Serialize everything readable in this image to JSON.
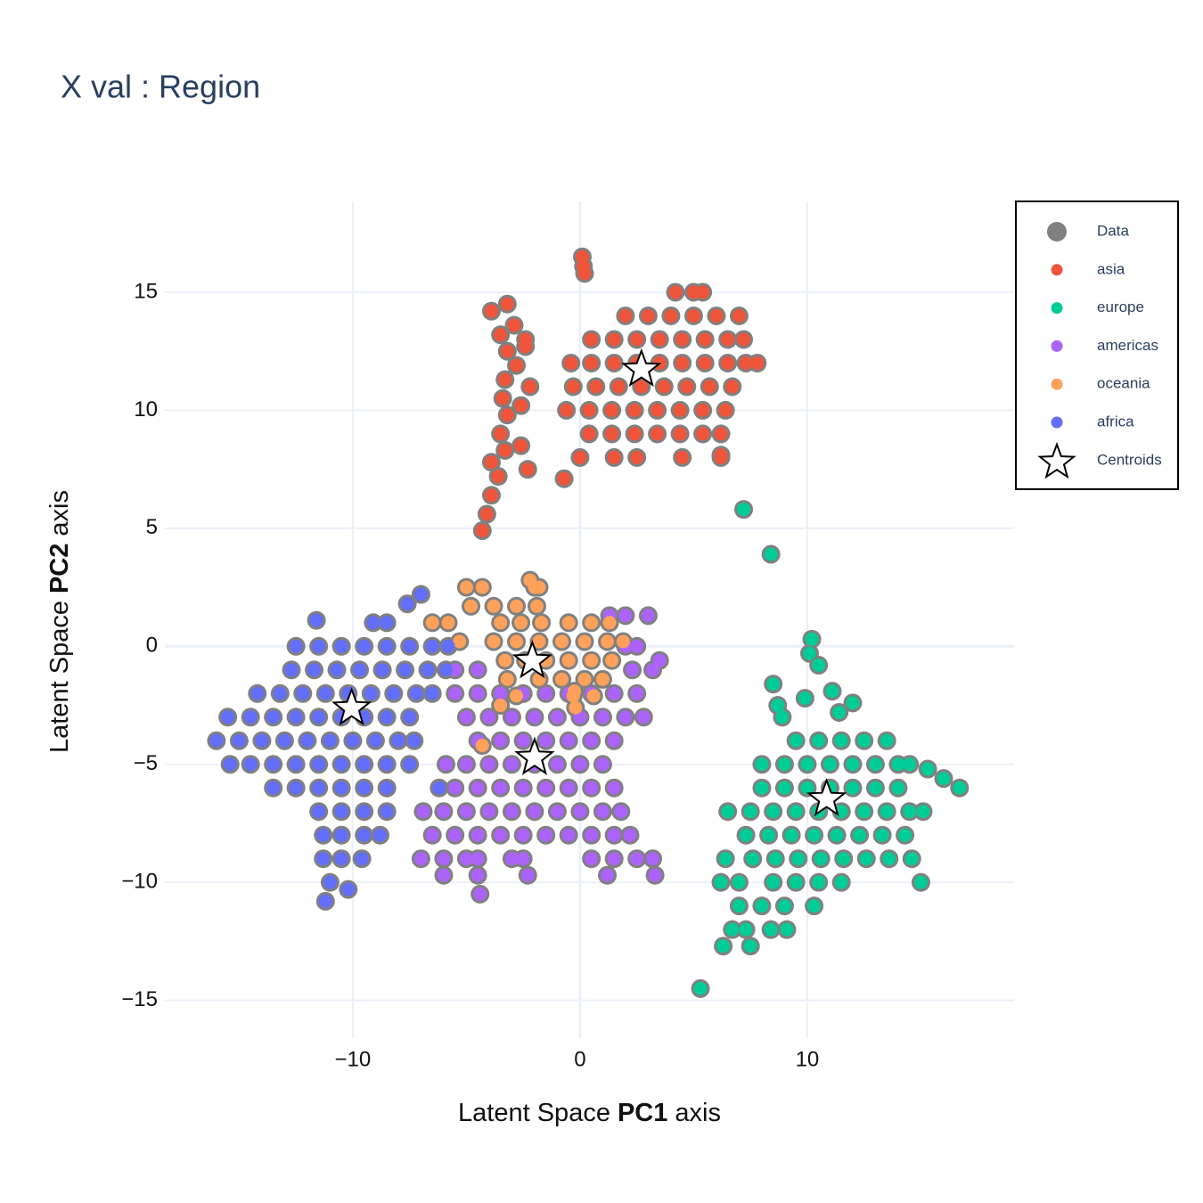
{
  "chart_data": {
    "type": "scatter",
    "title": "X val : Region",
    "x_label": {
      "parts": [
        "Latent Space",
        "PC1",
        "axis"
      ],
      "bold": [
        false,
        true,
        false
      ]
    },
    "y_label": {
      "parts": [
        "Latent Space",
        "PC2",
        "axis"
      ],
      "bold": [
        false,
        true,
        false
      ]
    },
    "xlim": [
      -18.27,
      19.1
    ],
    "ylim": [
      -16.6,
      18.85
    ],
    "xticks": [
      {
        "value": -10,
        "label": "−10"
      },
      0,
      10
    ],
    "yticks": [
      {
        "value": -15,
        "label": "−15"
      },
      {
        "value": -10,
        "label": "−10"
      },
      {
        "value": -5,
        "label": "−5"
      },
      0,
      5,
      10,
      15
    ],
    "grid": true,
    "legend": "top-right",
    "underlay": {
      "name": "Data",
      "color": "#808080"
    },
    "series": [
      {
        "name": "asia",
        "color": "#EF553B",
        "x": [
          0.1,
          0.2,
          0.15,
          -4.3,
          -4.1,
          -3.9,
          -3.6,
          -3.9,
          -3.3,
          -3.5,
          -3.2,
          -3.4,
          -2.6,
          -3.3,
          -2.8,
          -3.2,
          -2.4,
          -3.5,
          -2.9,
          -3.9,
          -3.2,
          -2.4,
          -2.2,
          -2.6,
          -2.3,
          4.2,
          5.0,
          5.4,
          2.0,
          3.0,
          4.0,
          5.0,
          6.0,
          7.0,
          0.5,
          1.5,
          2.5,
          3.5,
          4.5,
          5.5,
          6.5,
          7.2,
          -0.4,
          0.5,
          1.5,
          2.5,
          3.5,
          4.5,
          5.5,
          6.5,
          7.3,
          7.8,
          -0.3,
          0.7,
          1.7,
          2.7,
          3.7,
          4.7,
          5.7,
          6.7,
          -0.6,
          0.4,
          1.4,
          2.4,
          3.4,
          4.4,
          5.4,
          6.4,
          0.4,
          1.4,
          2.4,
          3.4,
          4.4,
          5.4,
          6.2,
          0.0,
          1.5,
          2.5,
          4.5,
          6.2,
          -0.7,
          6.2
        ],
        "y": [
          16.5,
          15.8,
          16.1,
          4.9,
          5.6,
          6.4,
          7.2,
          7.8,
          8.3,
          9.0,
          9.8,
          10.5,
          10.2,
          11.3,
          11.9,
          12.5,
          12.7,
          13.2,
          13.6,
          14.2,
          14.5,
          13.0,
          11.0,
          8.5,
          7.5,
          15,
          15,
          15,
          14,
          14,
          14,
          14,
          14,
          14,
          13,
          13,
          13,
          13,
          13,
          13,
          13,
          13,
          12,
          12,
          12,
          12,
          12,
          12,
          12,
          12,
          12,
          12,
          11,
          11,
          11,
          11,
          11,
          11,
          11,
          11,
          10,
          10,
          10,
          10,
          10,
          10,
          10,
          10,
          9,
          9,
          9,
          9,
          9,
          9,
          9,
          8,
          8,
          8,
          8,
          8,
          7.1,
          8.1
        ]
      },
      {
        "name": "europe",
        "color": "#00CC96",
        "x": [
          7.2,
          8.4,
          5.3,
          6.3,
          10.2,
          10.1,
          10.5,
          8.5,
          8.7,
          9.9,
          11.1,
          12.0,
          11.4,
          8.9,
          9.5,
          10.5,
          11.5,
          12.5,
          13.5,
          8.0,
          9.0,
          10.0,
          11.0,
          12.0,
          13.0,
          14.0,
          14.5,
          15.3,
          16.0,
          16.7,
          8.0,
          9.0,
          10.0,
          11.0,
          12.0,
          13.0,
          14.0,
          6.5,
          7.5,
          8.5,
          9.5,
          10.5,
          11.5,
          12.5,
          13.5,
          14.5,
          15.1,
          7.3,
          8.3,
          9.3,
          10.3,
          11.3,
          12.3,
          13.3,
          14.3,
          6.4,
          7.6,
          8.6,
          9.6,
          10.6,
          11.6,
          12.6,
          13.6,
          14.6,
          6.2,
          7.0,
          8.5,
          9.5,
          10.5,
          11.5,
          15.0,
          7.0,
          8.0,
          9.0,
          10.3,
          6.7,
          7.3,
          8.4,
          9.1,
          7.5
        ],
        "y": [
          5.8,
          3.9,
          -14.5,
          -12.7,
          0.3,
          -0.3,
          -0.8,
          -1.6,
          -2.5,
          -2.2,
          -1.9,
          -2.4,
          -2.8,
          -3.0,
          -4,
          -4,
          -4,
          -4,
          -4,
          -5,
          -5,
          -5,
          -5,
          -5,
          -5,
          -5,
          -5,
          -5.2,
          -5.6,
          -6.0,
          -6,
          -6,
          -6,
          -6,
          -6,
          -6,
          -6,
          -7,
          -7,
          -7,
          -7,
          -7,
          -7,
          -7,
          -7,
          -7,
          -7,
          -8,
          -8,
          -8,
          -8,
          -8,
          -8,
          -8,
          -8,
          -9,
          -9,
          -9,
          -9,
          -9,
          -9,
          -9,
          -9,
          -9,
          -10,
          -10,
          -10,
          -10,
          -10,
          -10,
          -10,
          -11,
          -11,
          -11,
          -11,
          -12,
          -12,
          -12,
          -12,
          -12.7
        ]
      },
      {
        "name": "americas",
        "color": "#AB63FA",
        "x": [
          1.3,
          2.0,
          3.0,
          3.5,
          2.5,
          2.0,
          -5.5,
          -4.5,
          2.3,
          3.2,
          -5.5,
          -4.5,
          -3.5,
          -2.5,
          -1.5,
          -0.5,
          0.5,
          1.5,
          2.5,
          -5,
          -4,
          -3,
          -2,
          -1,
          0,
          1,
          2,
          2.8,
          -4.5,
          -3.5,
          -2.5,
          -1.5,
          -0.5,
          0.5,
          1.5,
          -5.9,
          -5.0,
          -4.0,
          -3.0,
          -2.0,
          -1.0,
          0.0,
          1.0,
          -5.5,
          -4.5,
          -3.5,
          -2.5,
          -1.5,
          -0.5,
          0.5,
          1.5,
          -6.9,
          -6.0,
          -5.0,
          -4.0,
          -3.0,
          -2.0,
          -1.0,
          0.0,
          1.0,
          1.8,
          -6.5,
          -5.5,
          -4.5,
          -3.5,
          -2.5,
          -1.5,
          -0.5,
          0.5,
          1.5,
          2.2,
          -7.0,
          -6.0,
          -5.0,
          -4.5,
          -3.0,
          -2.5,
          0.5,
          1.5,
          2.5,
          3.2,
          -6.0,
          -4.5,
          -2.3,
          1.2,
          3.3,
          -4.4
        ],
        "y": [
          1.3,
          1.3,
          1.3,
          -0.6,
          0,
          0,
          -1,
          -1,
          -1,
          -1,
          -2,
          -2,
          -2,
          -2,
          -2,
          -2,
          -2,
          -2,
          -2,
          -3,
          -3,
          -3,
          -3,
          -3,
          -3,
          -3,
          -3,
          -3,
          -4,
          -4,
          -4,
          -4,
          -4,
          -4,
          -4,
          -5,
          -5,
          -5,
          -5,
          -5,
          -5,
          -5,
          -5,
          -6,
          -6,
          -6,
          -6,
          -6,
          -6,
          -6,
          -6,
          -7,
          -7,
          -7,
          -7,
          -7,
          -7,
          -7,
          -7,
          -7,
          -7,
          -8,
          -8,
          -8,
          -8,
          -8,
          -8,
          -8,
          -8,
          -8,
          -8,
          -9,
          -9,
          -9,
          -9,
          -9,
          -9,
          -9,
          -9,
          -9,
          -9,
          -9.7,
          -9.7,
          -9.7,
          -9.7,
          -9.7,
          -10.5
        ]
      },
      {
        "name": "oceania",
        "color": "#FFA15A",
        "x": [
          -5.0,
          -4.3,
          -2.0,
          -1.8,
          -2.2,
          -4.8,
          -3.8,
          -2.8,
          -1.9,
          -6.5,
          -5.8,
          -3.5,
          -2.6,
          -1.7,
          -0.5,
          0.5,
          1.3,
          -5.3,
          -3.8,
          -2.8,
          -1.8,
          -0.8,
          0.2,
          1.2,
          1.9,
          -3.3,
          -2.4,
          -1.5,
          -0.5,
          0.5,
          1.4,
          -3.2,
          -1.8,
          -0.8,
          0.2,
          1.0,
          -2.8,
          -0.3,
          0.6,
          -0.2,
          -3.5,
          -4.3,
          -0.25
        ],
        "y": [
          2.5,
          2.5,
          2.5,
          2.5,
          2.8,
          1.7,
          1.7,
          1.7,
          1.7,
          1,
          1,
          1,
          1,
          1,
          1,
          1,
          1,
          0.2,
          0.2,
          0.2,
          0.2,
          0.2,
          0.2,
          0.2,
          0.2,
          -0.6,
          -0.6,
          -0.6,
          -0.6,
          -0.6,
          -0.6,
          -1.4,
          -1.4,
          -1.4,
          -1.4,
          -1.4,
          -2.1,
          -2.1,
          -2.1,
          -2.6,
          -2.5,
          -4.2,
          -1.9
        ]
      },
      {
        "name": "africa",
        "color": "#636EFA",
        "x": [
          -7.0,
          -7.6,
          -11.6,
          -9.1,
          -8.5,
          -12.5,
          -11.5,
          -10.5,
          -9.5,
          -8.5,
          -7.5,
          -6.5,
          -5.8,
          -12.7,
          -11.7,
          -10.7,
          -9.7,
          -8.7,
          -7.7,
          -6.7,
          -5.9,
          -14.2,
          -13.2,
          -12.2,
          -11.2,
          -10.2,
          -9.2,
          -8.2,
          -7.2,
          -6.5,
          -15.5,
          -14.5,
          -13.5,
          -12.5,
          -11.5,
          -10.5,
          -9.5,
          -8.5,
          -7.5,
          -16.0,
          -15.0,
          -14.0,
          -13.0,
          -12.0,
          -11.0,
          -10.0,
          -9.0,
          -8.0,
          -7.3,
          -15.4,
          -14.5,
          -13.5,
          -12.5,
          -11.5,
          -10.5,
          -9.5,
          -8.5,
          -7.5,
          -13.5,
          -12.5,
          -11.5,
          -10.5,
          -9.5,
          -8.5,
          -6.2,
          -11.5,
          -10.5,
          -9.5,
          -8.5,
          -11.3,
          -10.5,
          -9.5,
          -8.8,
          -11.3,
          -10.5,
          -9.6,
          -10.2,
          -11.0,
          -11.2
        ],
        "y": [
          2.2,
          1.8,
          1.1,
          1.0,
          1.0,
          0,
          0,
          0,
          0,
          0,
          0,
          0,
          0,
          -1,
          -1,
          -1,
          -1,
          -1,
          -1,
          -1,
          -1,
          -2,
          -2,
          -2,
          -2,
          -2,
          -2,
          -2,
          -2,
          -2,
          -3,
          -3,
          -3,
          -3,
          -3,
          -3,
          -3,
          -3,
          -3,
          -4,
          -4,
          -4,
          -4,
          -4,
          -4,
          -4,
          -4,
          -4,
          -4,
          -5,
          -5,
          -5,
          -5,
          -5,
          -5,
          -5,
          -5,
          -5,
          -6,
          -6,
          -6,
          -6,
          -6,
          -6,
          -6,
          -7,
          -7,
          -7,
          -7,
          -8,
          -8,
          -8,
          -8,
          -9,
          -9,
          -9,
          -10.3,
          -10,
          -10.8
        ]
      }
    ],
    "centroids": {
      "name": "Centroids",
      "color": "#ffffff",
      "x": [
        2.7,
        10.85,
        -2.0,
        -2.1,
        -10.05
      ],
      "y": [
        11.8,
        -6.4,
        -4.65,
        -0.55,
        -2.55
      ]
    }
  }
}
